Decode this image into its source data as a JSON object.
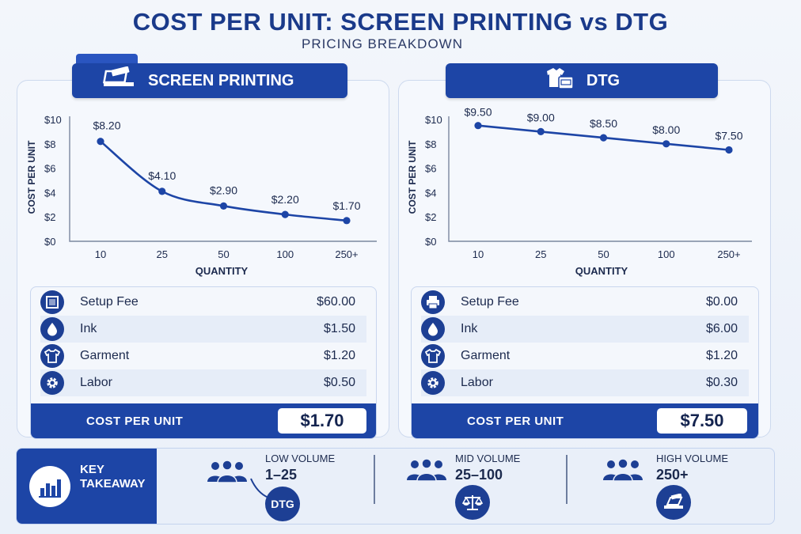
{
  "title": "COST PER UNIT: SCREEN PRINTING vs DTG",
  "subtitle": "PRICING BREAKDOWN",
  "chart_data": [
    {
      "type": "line",
      "title": "SCREEN PRINTING",
      "xlabel": "QUANTITY",
      "ylabel": "COST PER UNIT",
      "categories": [
        "10",
        "25",
        "50",
        "100",
        "250+"
      ],
      "values": [
        8.2,
        4.1,
        2.9,
        2.2,
        1.7
      ],
      "data_labels": [
        "$8.20",
        "$4.10",
        "$2.90",
        "$2.20",
        "$1.70"
      ],
      "yticks": [
        "$0",
        "$2",
        "$4",
        "$6",
        "$8",
        "$10"
      ],
      "ylim": [
        0,
        10
      ],
      "color": "#1d45a6",
      "grid": false
    },
    {
      "type": "line",
      "title": "DTG",
      "xlabel": "QUANTITY",
      "ylabel": "COST PER UNIT",
      "categories": [
        "10",
        "25",
        "50",
        "100",
        "250+"
      ],
      "values": [
        9.5,
        9.0,
        8.5,
        8.0,
        7.5
      ],
      "data_labels": [
        "$9.50",
        "$9.00",
        "$8.50",
        "$8.00",
        "$7.50"
      ],
      "yticks": [
        "$0",
        "$2",
        "$4",
        "$6",
        "$8",
        "$10"
      ],
      "ylim": [
        0,
        10
      ],
      "color": "#1d45a6",
      "grid": false
    }
  ],
  "screen_printing": {
    "header": "SCREEN PRINTING",
    "icon": "screen-printer-icon",
    "costs": [
      {
        "label": "Setup Fee",
        "value": "$60.00",
        "icon": "frame-icon"
      },
      {
        "label": "Ink",
        "value": "$1.50",
        "icon": "ink-drop-icon"
      },
      {
        "label": "Garment",
        "value": "$1.20",
        "icon": "tshirt-icon"
      },
      {
        "label": "Labor",
        "value": "$0.50",
        "icon": "gear-icon"
      }
    ],
    "footer_label": "COST PER UNIT",
    "footer_value": "$1.70"
  },
  "dtg": {
    "header": "DTG",
    "icon": "tshirt-printer-icon",
    "costs": [
      {
        "label": "Setup Fee",
        "value": "$0.00",
        "icon": "printer-icon"
      },
      {
        "label": "Ink",
        "value": "$6.00",
        "icon": "ink-drop-icon"
      },
      {
        "label": "Garment",
        "value": "$1.20",
        "icon": "tshirt-icon"
      },
      {
        "label": "Labor",
        "value": "$0.30",
        "icon": "gear-icon"
      }
    ],
    "footer_label": "COST PER UNIT",
    "footer_value": "$7.50"
  },
  "takeaway": {
    "title_line1": "KEY",
    "title_line2": "TAKEAWAY",
    "icon": "bar-chart-icon",
    "columns": [
      {
        "label": "LOW VOLUME",
        "range": "1–25",
        "badge": "DTG",
        "icon": "people-icon"
      },
      {
        "label": "MID VOLUME",
        "range": "25–100",
        "badge_icon": "scale-icon",
        "icon": "people-icon"
      },
      {
        "label": "HIGH VOLUME",
        "range": "250+",
        "badge_icon": "screen-printer-icon",
        "icon": "people-icon"
      }
    ]
  }
}
